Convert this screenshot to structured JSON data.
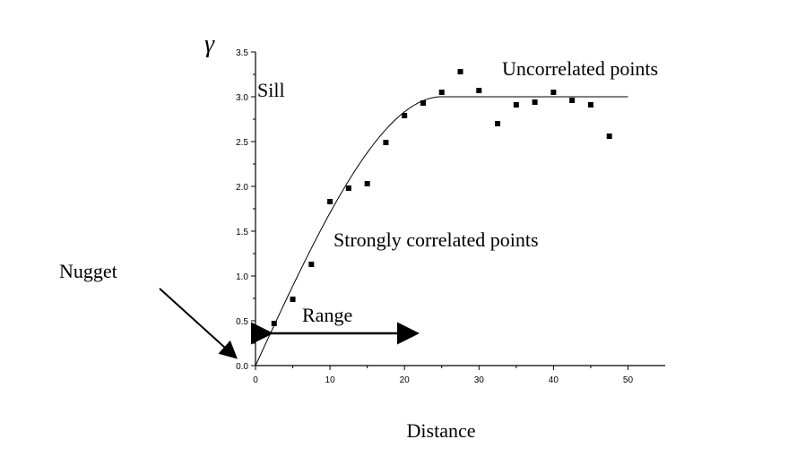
{
  "chart_data": {
    "type": "scatter",
    "title": "",
    "xlabel": "Distance",
    "ylabel": "γ",
    "xlim": [
      0,
      55
    ],
    "ylim": [
      0,
      3.5
    ],
    "x_ticks": [
      0,
      10,
      20,
      30,
      40,
      50
    ],
    "y_ticks": [
      0.0,
      0.5,
      1.0,
      1.5,
      2.0,
      2.5,
      3.0,
      3.5
    ],
    "x_tick_labels": [
      "0",
      "10",
      "20",
      "30",
      "40",
      "50"
    ],
    "y_tick_labels": [
      "0.0",
      "0.5",
      "1.0",
      "1.5",
      "2.0",
      "2.5",
      "3.0",
      "3.5"
    ],
    "grid": false,
    "series": [
      {
        "type": "scatter",
        "x": [
          2.5,
          5,
          7.5,
          10,
          12.5,
          15,
          17.5,
          20,
          22.5,
          25,
          27.5,
          30,
          32.5,
          35,
          37.5,
          40,
          42.5,
          45,
          47.5
        ],
        "y": [
          0.47,
          0.74,
          1.13,
          1.83,
          1.98,
          2.03,
          2.49,
          2.79,
          2.93,
          3.05,
          3.28,
          3.07,
          2.7,
          2.91,
          2.94,
          3.05,
          2.96,
          2.91,
          2.56
        ]
      },
      {
        "type": "line",
        "model": "spherical",
        "nugget": 0,
        "sill": 3.0,
        "range": 25,
        "x_end": 50
      }
    ],
    "annotations": {
      "sill": "Sill",
      "nugget": "Nugget",
      "range": "Range",
      "uncorrelated": "Uncorrelated points",
      "correlated": "Strongly correlated points"
    }
  }
}
